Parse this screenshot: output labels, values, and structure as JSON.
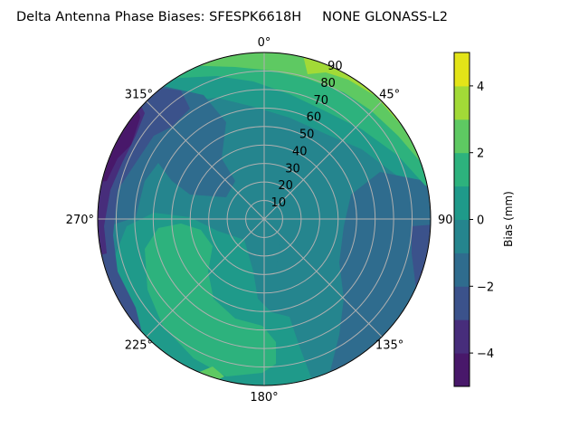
{
  "chart_data": {
    "type": "contour",
    "projection": "polar",
    "title": "Delta Antenna Phase Biases: SFESPK6618H     NONE GLONASS-L2",
    "theta_direction": "clockwise",
    "theta_zero": "top",
    "theta_tick_labels": [
      "0°",
      "45°",
      "90°",
      "135°",
      "180°",
      "225°",
      "270°",
      "315°"
    ],
    "r_tick_labels": [
      "10",
      "20",
      "30",
      "40",
      "50",
      "60",
      "70",
      "80",
      "90"
    ],
    "r_range": [
      0,
      90
    ],
    "grid": true,
    "colorbar": {
      "label": "Bias (mm)",
      "range": [
        -5,
        5
      ],
      "levels": [
        -5,
        -4,
        -3,
        -2,
        -1,
        0,
        1,
        2,
        3,
        4,
        5
      ],
      "tick_values": [
        -4,
        -2,
        0,
        2,
        4
      ],
      "tick_labels": [
        "−4",
        "−2",
        "0",
        "2",
        "4"
      ],
      "colormap": "viridis",
      "band_colors": [
        "#48186a",
        "#472d7b",
        "#3b528b",
        "#2f6c8e",
        "#25858e",
        "#1f9a8a",
        "#2db27d",
        "#5ec962",
        "#a2da37",
        "#e3e418"
      ]
    },
    "regions_summary": {
      "high_positive": "north-east edge (az 20°–80°, el 60–90) up to 4–5 mm",
      "negative": "west edge (az 270°–320°) down to −5 mm and east/south-east edge down to −4 mm",
      "moderate_positive": "south-west sector (az 190°–260°) 1–2 mm"
    }
  }
}
